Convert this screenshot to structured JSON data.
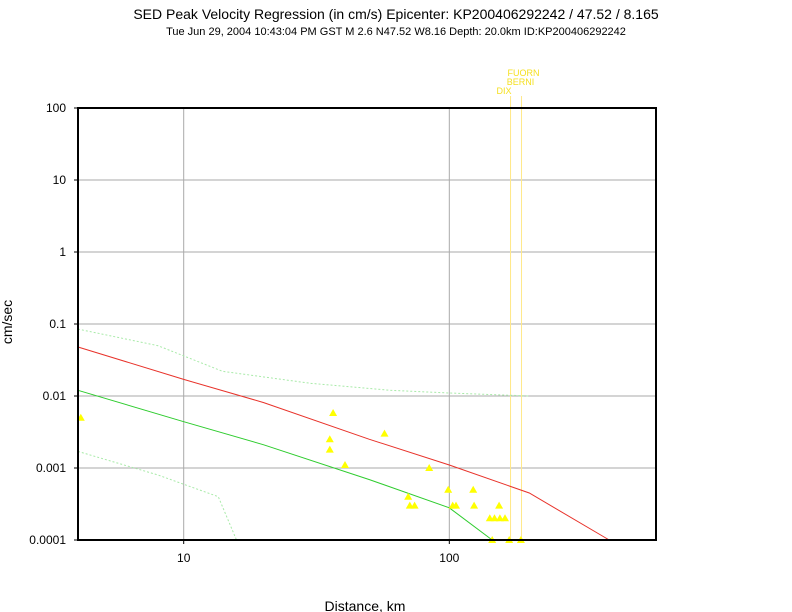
{
  "chart_data": {
    "type": "scatter",
    "title": "SED Peak Velocity Regression (in cm/s) Epicenter: KP200406292242 / 47.52 / 8.165",
    "subtitle": "Tue Jun 29, 2004 10:43:04 PM GST    M 2.6    N47.52 W8.16    Depth: 20.0km    ID:KP200406292242",
    "xlabel": "Distance, km",
    "ylabel": "cm/sec",
    "x_scale": "log",
    "y_scale": "log",
    "xlim": [
      4,
      600
    ],
    "ylim": [
      0.0001,
      100
    ],
    "grid": true,
    "x_ticks": [
      10,
      100
    ],
    "x_tick_labels": [
      "10",
      "100"
    ],
    "y_ticks": [
      0.0001,
      0.001,
      0.01,
      0.1,
      1,
      10,
      100
    ],
    "y_tick_labels": [
      "0.0001",
      "0.001",
      "0.01",
      "0.1",
      "1",
      "10",
      "100"
    ],
    "colors": {
      "points": "#ffff00",
      "regression": "#e8322a",
      "lower_fit": "#2ecc2e",
      "confidence": "#a8eaa8",
      "station_lines": "#ffe98a",
      "station_text": "#f5e020"
    },
    "points": [
      {
        "x": 4.1,
        "y": 0.005
      },
      {
        "x": 36.5,
        "y": 0.0058
      },
      {
        "x": 35.5,
        "y": 0.0025
      },
      {
        "x": 35.5,
        "y": 0.0018
      },
      {
        "x": 40.5,
        "y": 0.0011
      },
      {
        "x": 57,
        "y": 0.003
      },
      {
        "x": 84,
        "y": 0.001
      },
      {
        "x": 70,
        "y": 0.0004
      },
      {
        "x": 71,
        "y": 0.0003
      },
      {
        "x": 74,
        "y": 0.0003
      },
      {
        "x": 99,
        "y": 0.0005
      },
      {
        "x": 103,
        "y": 0.0003
      },
      {
        "x": 106,
        "y": 0.0003
      },
      {
        "x": 123,
        "y": 0.0005
      },
      {
        "x": 124,
        "y": 0.0003
      },
      {
        "x": 142,
        "y": 0.0002
      },
      {
        "x": 148,
        "y": 0.0002
      },
      {
        "x": 154,
        "y": 0.0003
      },
      {
        "x": 155,
        "y": 0.0002
      },
      {
        "x": 162,
        "y": 0.0002
      },
      {
        "x": 145,
        "y": 0.0001
      },
      {
        "x": 168,
        "y": 0.0001
      },
      {
        "x": 186,
        "y": 0.0001
      }
    ],
    "series": [
      {
        "role": "regression",
        "x": [
          4,
          10,
          20,
          50,
          100,
          200,
          400
        ],
        "y": [
          0.048,
          0.017,
          0.0081,
          0.0025,
          0.0011,
          0.00045,
          0.0001
        ]
      },
      {
        "role": "lower_fit",
        "x": [
          4,
          10,
          20,
          50,
          100,
          145
        ],
        "y": [
          0.012,
          0.0044,
          0.0021,
          0.00069,
          0.00028,
          0.0001
        ]
      },
      {
        "role": "upper_confidence",
        "x": [
          4,
          8,
          14,
          30,
          60,
          100,
          200
        ],
        "y": [
          0.085,
          0.05,
          0.022,
          0.015,
          0.012,
          0.011,
          0.01
        ]
      },
      {
        "role": "lower_confidence",
        "x": [
          4,
          8,
          13.5,
          15.8
        ],
        "y": [
          0.0017,
          0.0008,
          0.0004,
          0.0001
        ]
      }
    ],
    "stations": [
      {
        "label": "FUORN",
        "x": 187
      },
      {
        "label": "BERNI",
        "x": 170
      },
      {
        "label": "DIX",
        "x": 170
      }
    ]
  }
}
